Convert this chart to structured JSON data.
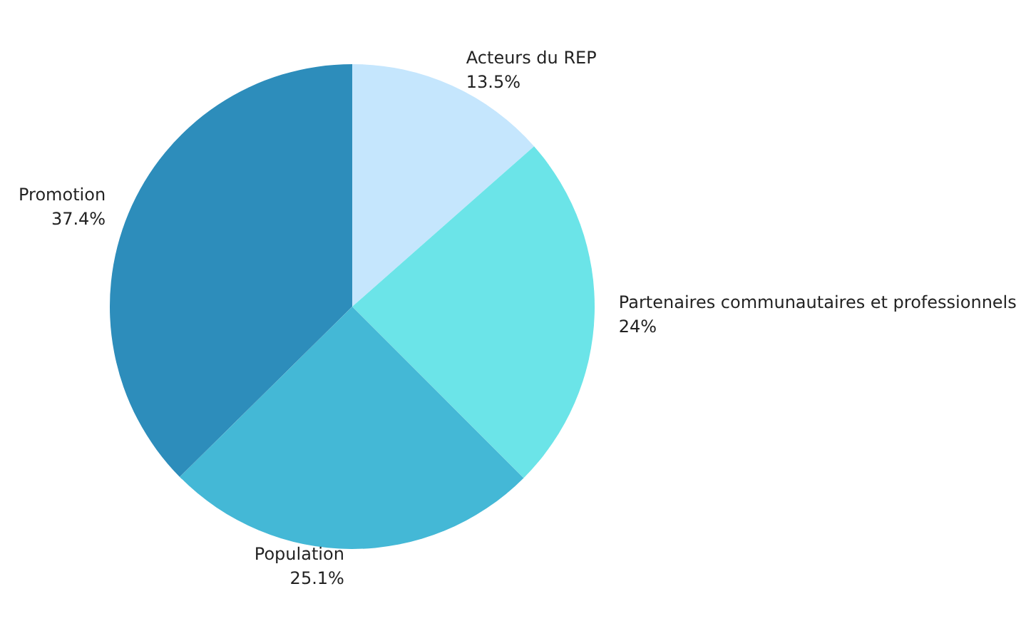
{
  "chart_data": {
    "type": "pie",
    "categories": [
      "Acteurs du REP",
      "Partenaires communautaires et professionnels",
      "Population",
      "Promotion"
    ],
    "values": [
      13.5,
      24,
      25.1,
      37.4
    ],
    "value_labels": [
      "13.5%",
      "24%",
      "25.1%",
      "37.4%"
    ],
    "colors": [
      "#c5e6fd",
      "#6be4e8",
      "#44b8d6",
      "#2d8dbb"
    ],
    "legend": false
  }
}
